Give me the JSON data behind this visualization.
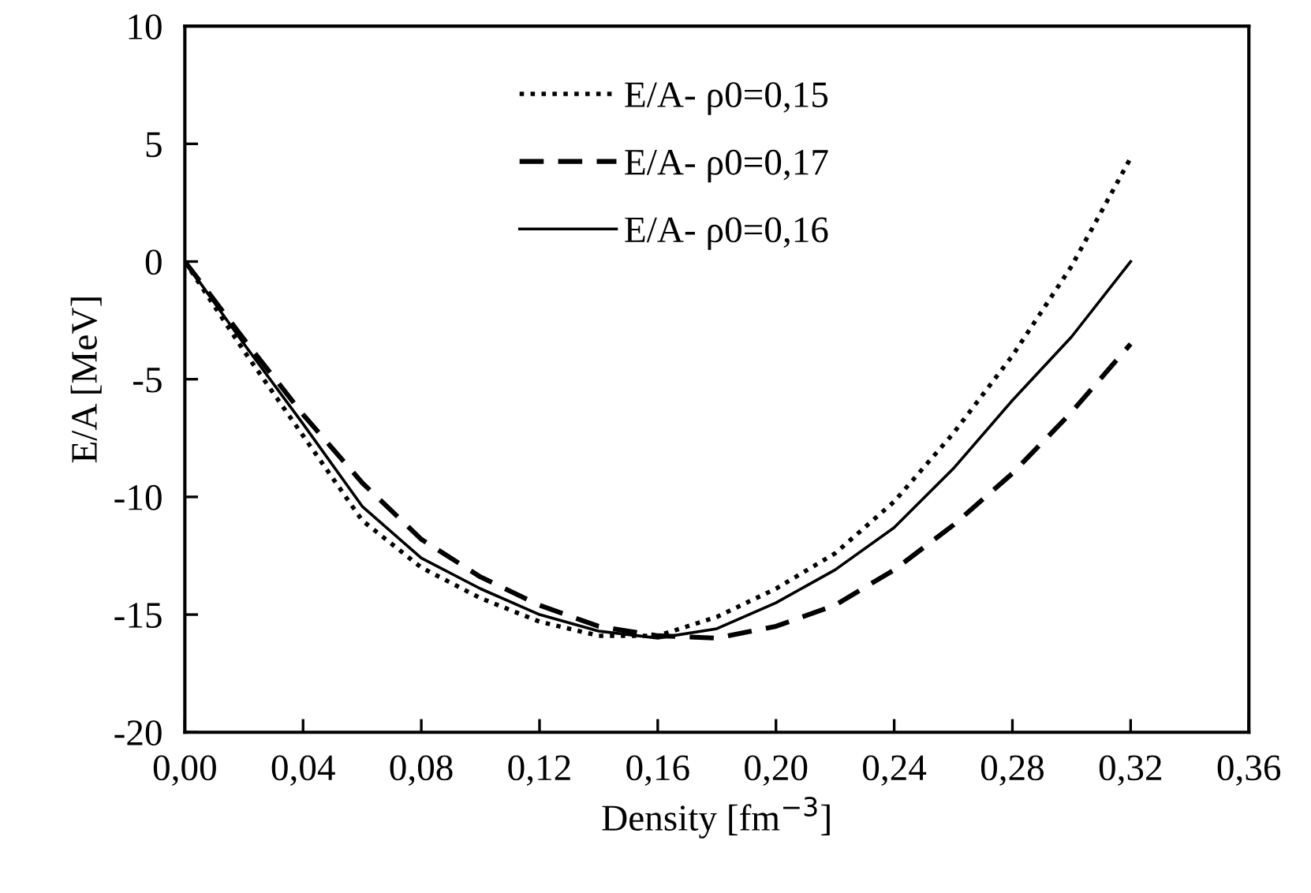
{
  "chart_data": {
    "type": "line",
    "xlabel": "Density [fm$^{−3}$]",
    "ylabel": "E/A [MeV]",
    "x": [
      0,
      0.02,
      0.04,
      0.06,
      0.08,
      0.1,
      0.12,
      0.14,
      0.16,
      0.18,
      0.2,
      0.22,
      0.24,
      0.26,
      0.28,
      0.3,
      0.32
    ],
    "series": [
      {
        "name": "E/A- ρ0=0,15",
        "color": "#000000",
        "line_style": "dotted",
        "values": [
          0,
          -3.8,
          -7.4,
          -11.0,
          -13.0,
          -14.3,
          -15.3,
          -15.9,
          -15.9,
          -15.1,
          -13.9,
          -12.4,
          -10.2,
          -7.3,
          -4.0,
          -0.2,
          4.4
        ]
      },
      {
        "name": "E/A- ρ0=0,17",
        "color": "#000000",
        "line_style": "dashed",
        "values": [
          0,
          -3.3,
          -6.5,
          -9.4,
          -11.8,
          -13.4,
          -14.6,
          -15.5,
          -15.9,
          -16.0,
          -15.5,
          -14.6,
          -13.1,
          -11.2,
          -9.0,
          -6.4,
          -3.5
        ]
      },
      {
        "name": "E/A- ρ0=0,16",
        "color": "#000000",
        "line_style": "solid",
        "values": [
          0,
          -3.5,
          -6.9,
          -10.4,
          -12.6,
          -13.9,
          -15.0,
          -15.7,
          -16.0,
          -15.6,
          -14.5,
          -13.1,
          -11.3,
          -8.8,
          -5.9,
          -3.2,
          0
        ]
      }
    ],
    "xlim": [
      0,
      0.36
    ],
    "xticks": [
      {
        "value": 0,
        "label": "0,00"
      },
      {
        "value": 0.04,
        "label": "0,04"
      },
      {
        "value": 0.08,
        "label": "0,08"
      },
      {
        "value": 0.12,
        "label": "0,12"
      },
      {
        "value": 0.16,
        "label": "0,16"
      },
      {
        "value": 0.2,
        "label": "0,20"
      },
      {
        "value": 0.24,
        "label": "0,24"
      },
      {
        "value": 0.28,
        "label": "0,28"
      },
      {
        "value": 0.32,
        "label": "0,32"
      },
      {
        "value": 0.36,
        "label": "0,36"
      }
    ],
    "ylim": [
      -20,
      10
    ],
    "yticks": [
      -20,
      -15,
      -10,
      -5,
      0,
      5,
      10
    ],
    "grid": false,
    "legend": "top",
    "marker": "none"
  }
}
